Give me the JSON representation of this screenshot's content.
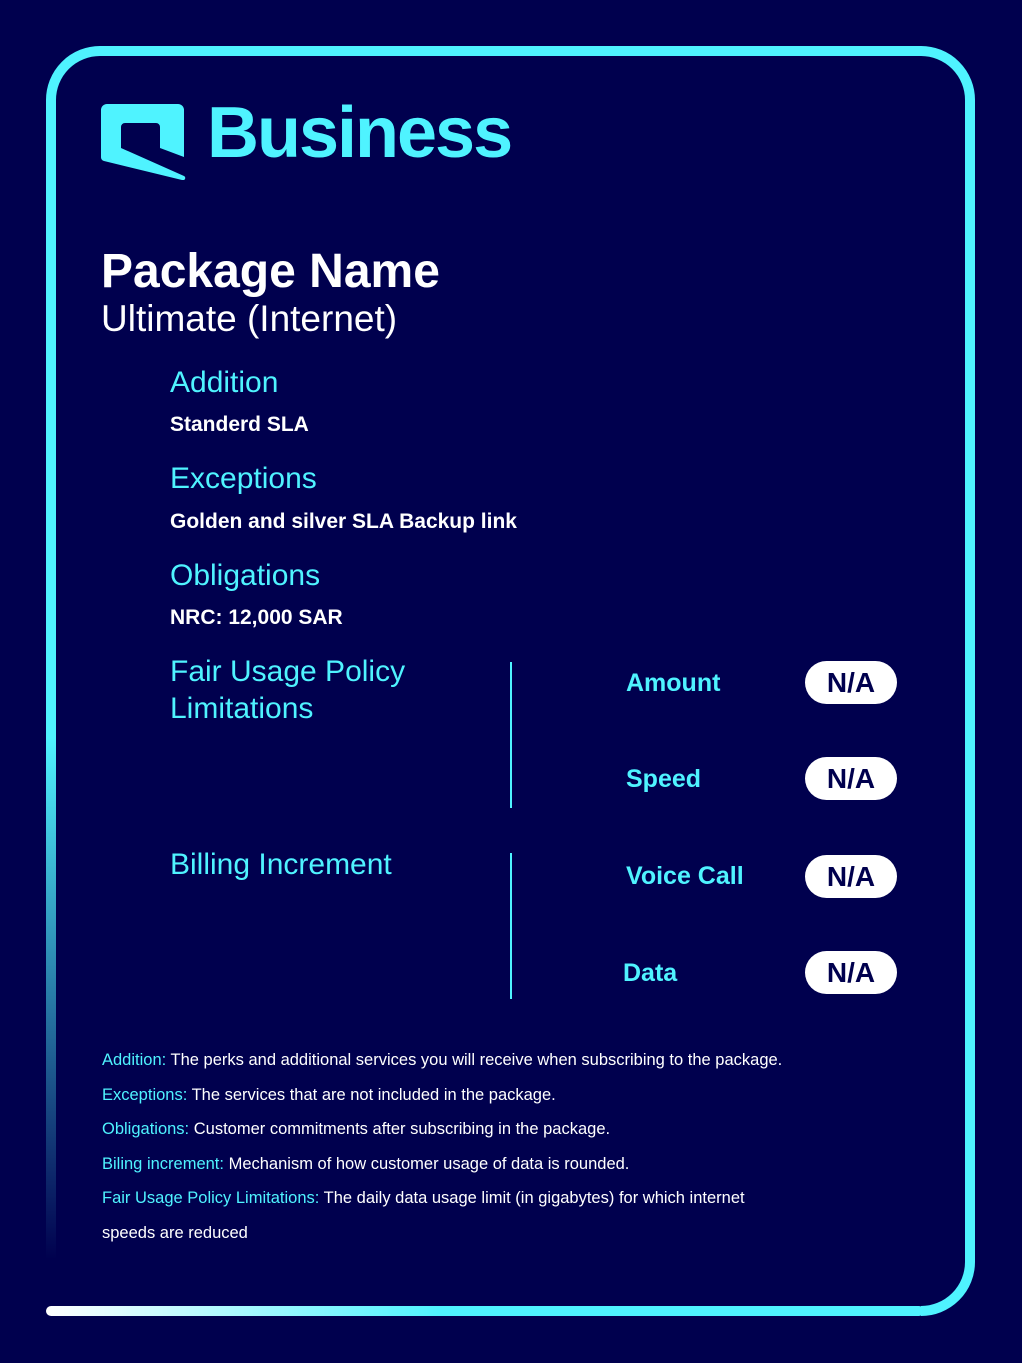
{
  "brand": {
    "name": "Business",
    "logo_icon": "speech-bubble-logo-icon",
    "accent": "#4ff3ff",
    "background": "#00004e"
  },
  "package": {
    "title": "Package Name",
    "name": "Ultimate (Internet)"
  },
  "sections": {
    "addition": {
      "heading": "Addition",
      "value": "Standerd SLA"
    },
    "exceptions": {
      "heading": "Exceptions",
      "value": "Golden and silver SLA Backup link"
    },
    "obligations": {
      "heading": "Obligations",
      "value": "NRC: 12,000 SAR"
    }
  },
  "fair_usage": {
    "heading_line1": "Fair Usage Policy",
    "heading_line2": "Limitations",
    "items": [
      {
        "label": "Amount",
        "value": "N/A"
      },
      {
        "label": "Speed",
        "value": "N/A"
      }
    ]
  },
  "billing": {
    "heading": "Billing Increment",
    "items": [
      {
        "label": "Voice Call",
        "value": "N/A"
      },
      {
        "label": "Data",
        "value": "N/A"
      }
    ]
  },
  "notes": [
    {
      "term": "Addition:",
      "text": "The perks and additional services you will receive when subscribing to the package."
    },
    {
      "term": "Exceptions:",
      "text": "The services that are not included in the package."
    },
    {
      "term": "Obligations:",
      "text": "Customer commitments after subscribing in the package."
    },
    {
      "term": "Biling increment:",
      "text": "Mechanism of how customer usage of data is rounded."
    },
    {
      "term": "Fair Usage Policy Limitations:",
      "text": "The daily data usage limit (in gigabytes) for which internet",
      "text2": "speeds are reduced"
    }
  ]
}
